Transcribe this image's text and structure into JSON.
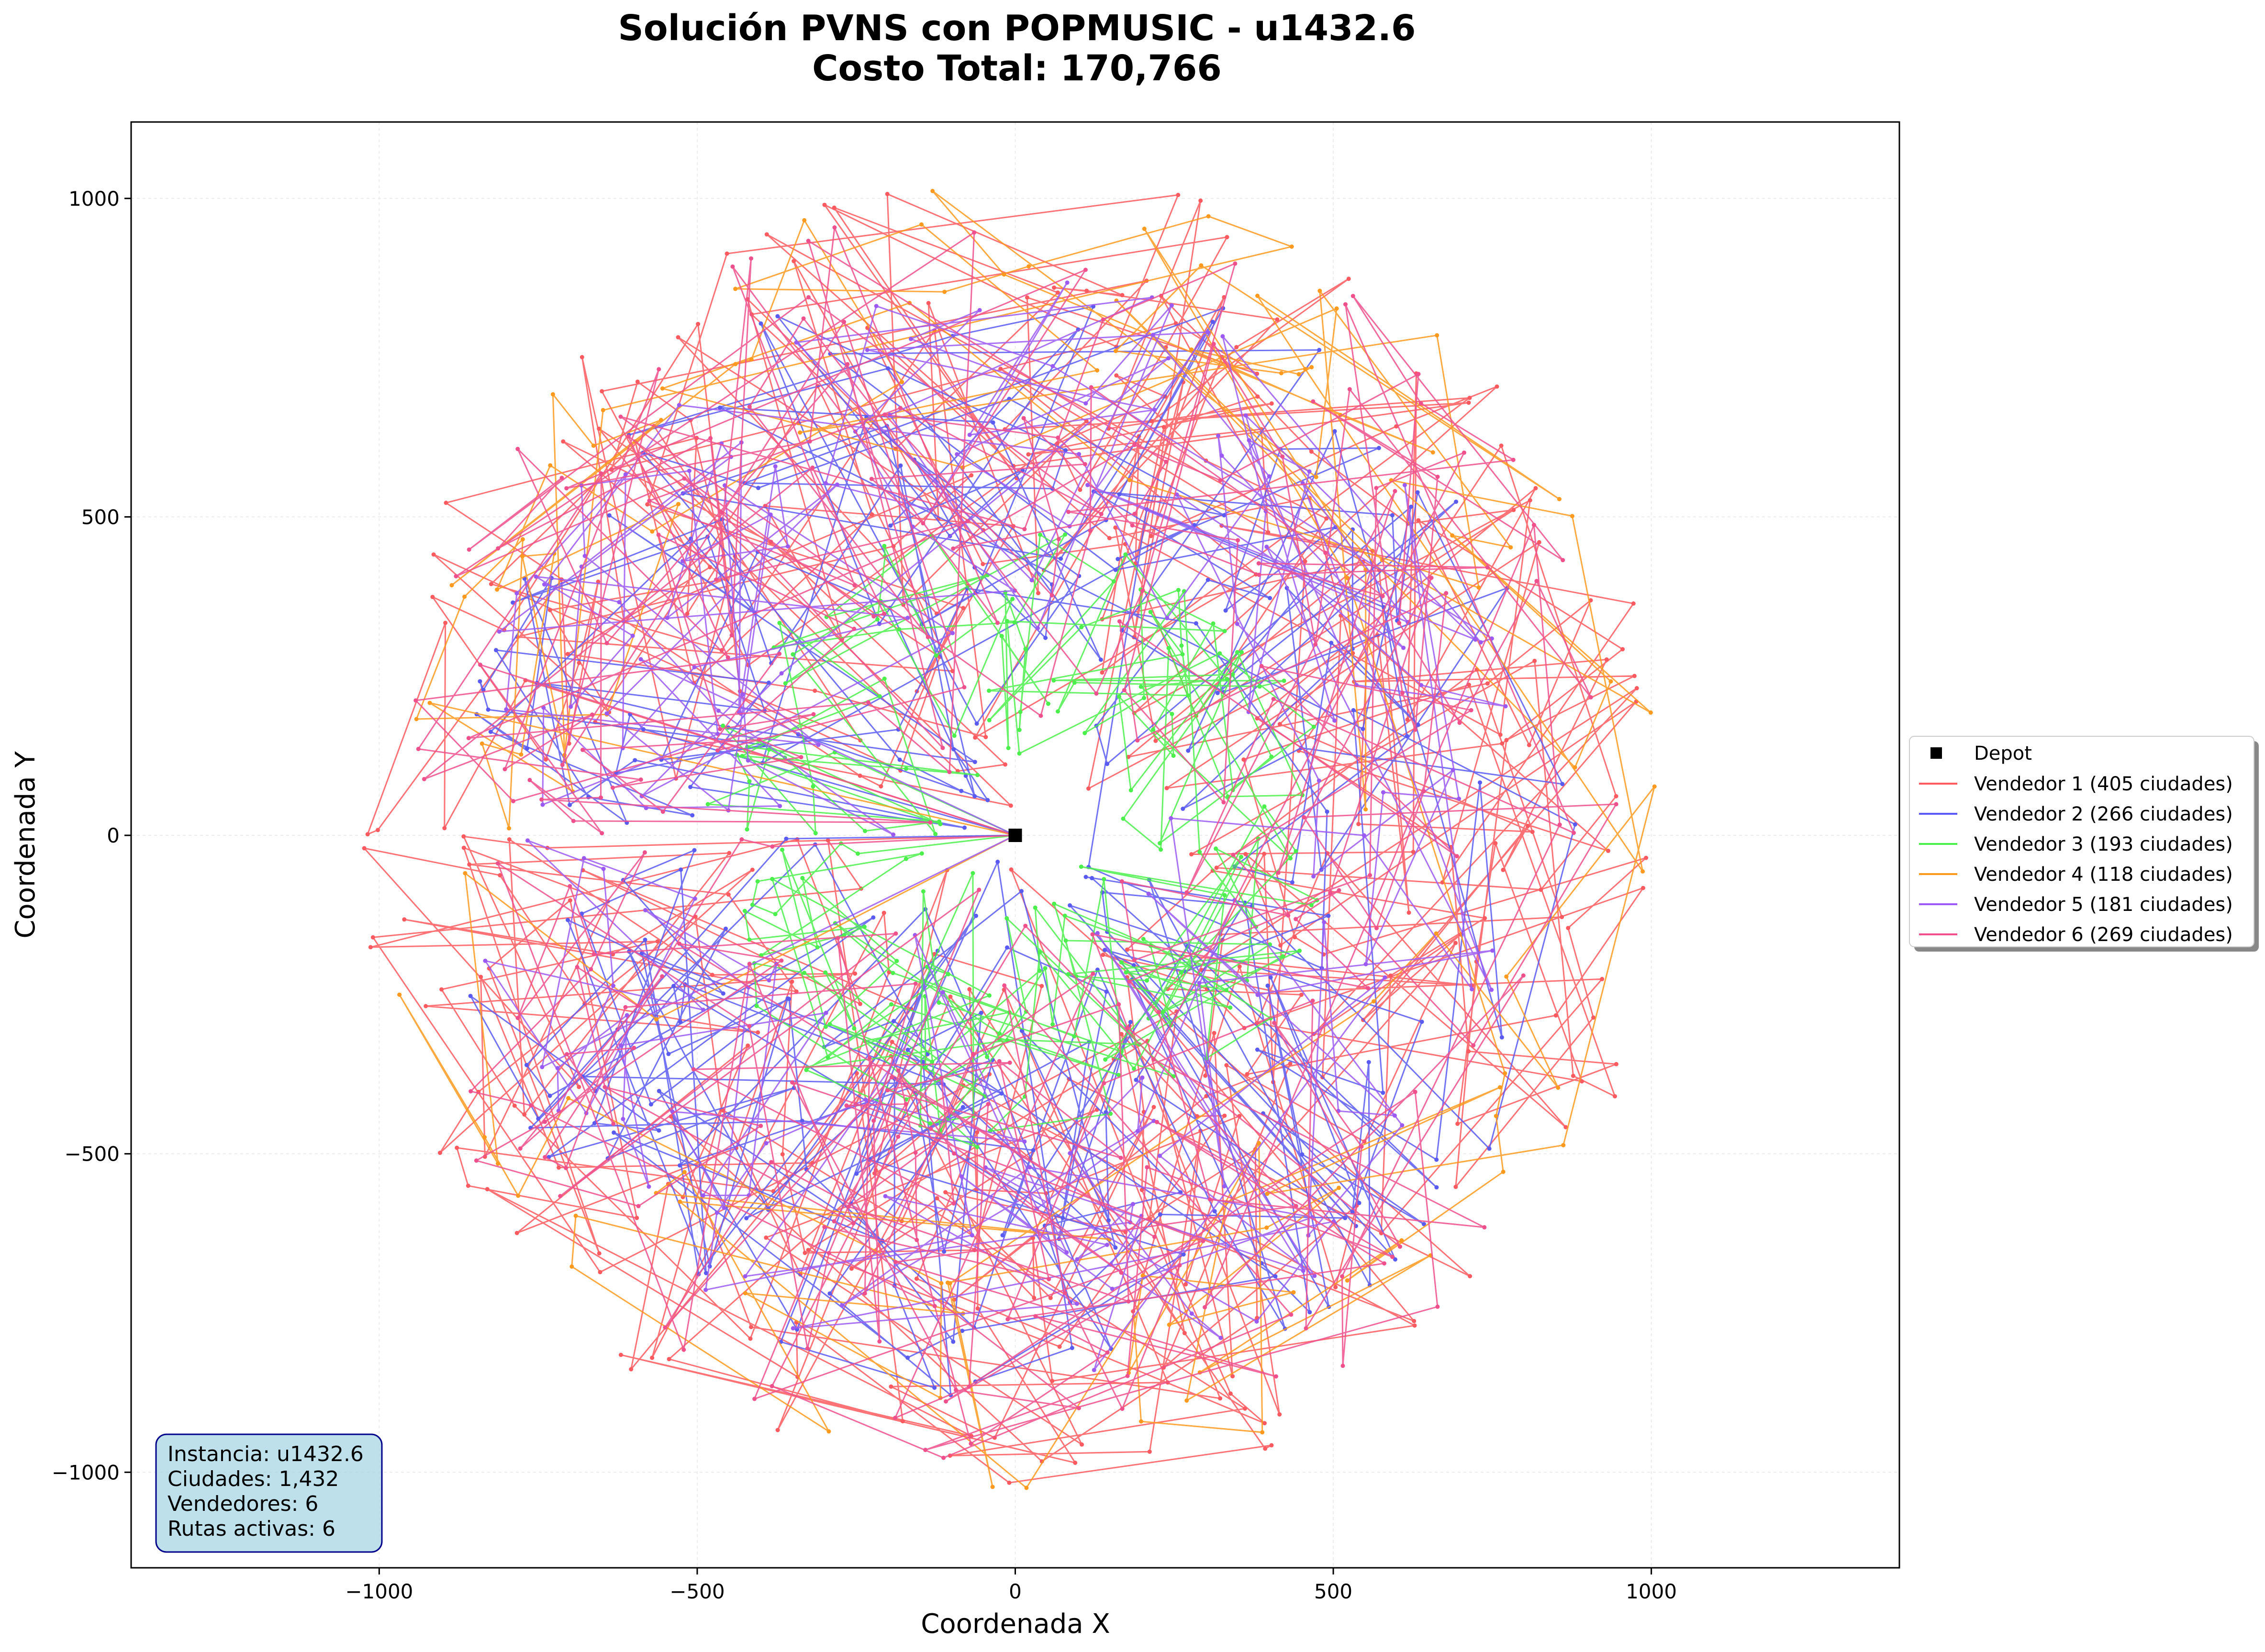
{
  "chart_data": {
    "type": "scatter",
    "title": "Solución PVNS con POPMUSIC - u1432.6",
    "subtitle": "Costo Total: 170,766",
    "xlabel": "Coordenada X",
    "ylabel": "Coordenada Y",
    "xlim": [
      -1390,
      1390
    ],
    "ylim": [
      -1150,
      1120
    ],
    "xticks": [
      -1000,
      -500,
      0,
      500,
      1000
    ],
    "xtick_labels": [
      "−1000",
      "−500",
      "0",
      "500",
      "1000"
    ],
    "yticks": [
      -1000,
      -500,
      0,
      500,
      1000
    ],
    "ytick_labels": [
      "−1000",
      "−500",
      "0",
      "500",
      "1000"
    ],
    "grid": true,
    "legend_position": "outside-right",
    "depot": {
      "label": "Depot",
      "x": 0,
      "y": 0,
      "color": "#000000"
    },
    "series": [
      {
        "name": "Vendedor 1 (405 ciudades)",
        "color": "#ff5a5f",
        "cities": 405,
        "r_min": 0,
        "r_max": 1040
      },
      {
        "name": "Vendedor 2 (266 ciudades)",
        "color": "#5a5af5",
        "cities": 266,
        "r_min": 0,
        "r_max": 900
      },
      {
        "name": "Vendedor 3 (193 ciudades)",
        "color": "#4cf04c",
        "cities": 193,
        "r_min": 60,
        "r_max": 500
      },
      {
        "name": "Vendedor 4 (118 ciudades)",
        "color": "#ff9a1f",
        "cities": 118,
        "r_min": 500,
        "r_max": 1030
      },
      {
        "name": "Vendedor 5 (181 ciudades)",
        "color": "#9b5af5",
        "cities": 181,
        "r_min": 150,
        "r_max": 880
      },
      {
        "name": "Vendedor 6 (269 ciudades)",
        "color": "#f0508c",
        "cities": 269,
        "r_min": 50,
        "r_max": 1000
      }
    ]
  },
  "info_box": {
    "line1": "Instancia: u1432.6",
    "line2": "Ciudades: 1,432",
    "line3": "Vendedores: 6",
    "line4": "Rutas activas: 6"
  }
}
